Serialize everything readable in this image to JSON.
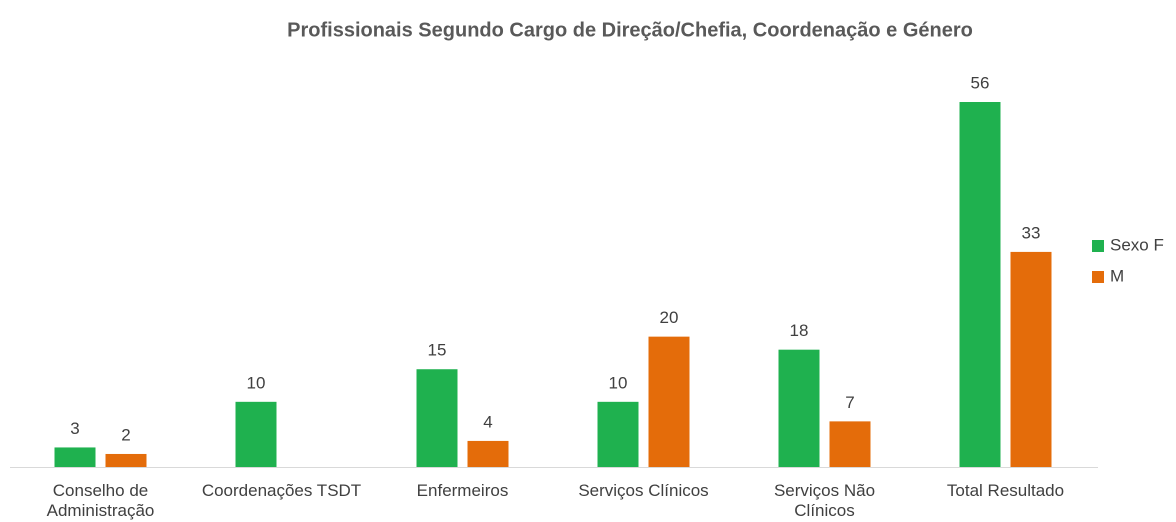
{
  "chart_data": {
    "type": "bar",
    "title": "Profissionais Segundo Cargo de Direção/Chefia, Coordenação e Género",
    "categories": [
      "Conselho de Administração",
      "Coordenações TSDT",
      "Enfermeiros",
      "Serviços Clínicos",
      "Serviços Não Clínicos",
      "Total Resultado"
    ],
    "series": [
      {
        "name": "Sexo F",
        "color": "#1fb14f",
        "values": [
          3,
          10,
          15,
          10,
          18,
          56
        ]
      },
      {
        "name": "M",
        "color": "#e46c0a",
        "values": [
          2,
          null,
          4,
          20,
          7,
          33
        ]
      }
    ],
    "legend": "right"
  }
}
